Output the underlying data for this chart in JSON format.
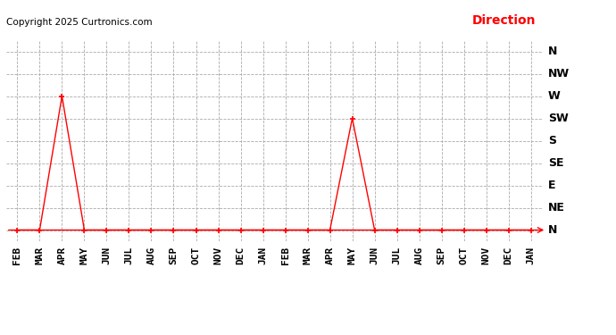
{
  "copyright": "Copyright 2025 Curtronics.com",
  "legend_label": "Direction",
  "x_labels": [
    "FEB",
    "MAR",
    "APR",
    "MAY",
    "JUN",
    "JUL",
    "AUG",
    "SEP",
    "OCT",
    "NOV",
    "DEC",
    "JAN",
    "FEB",
    "MAR",
    "APR",
    "MAY",
    "JUN",
    "JUL",
    "AUG",
    "SEP",
    "OCT",
    "NOV",
    "DEC",
    "JAN"
  ],
  "y_labels": [
    "N",
    "NE",
    "E",
    "SE",
    "S",
    "SW",
    "W",
    "NW",
    "N"
  ],
  "y_values": [
    0,
    1,
    2,
    3,
    4,
    5,
    6,
    7,
    8
  ],
  "data_values": [
    0,
    0,
    6,
    0,
    0,
    0,
    0,
    0,
    0,
    0,
    0,
    0,
    0,
    0,
    0,
    5,
    0,
    0,
    0,
    0,
    0,
    0,
    0,
    0
  ],
  "line_color": "#ff0000",
  "marker": "+",
  "marker_size": 4,
  "marker_linewidth": 1.2,
  "line_width": 1.0,
  "grid_color": "#aaaaaa",
  "grid_style": "--",
  "background_color": "#ffffff",
  "title_fontsize": 13,
  "copyright_fontsize": 7.5,
  "legend_fontsize": 10,
  "tick_fontsize": 8,
  "ylabel_fontsize": 9
}
